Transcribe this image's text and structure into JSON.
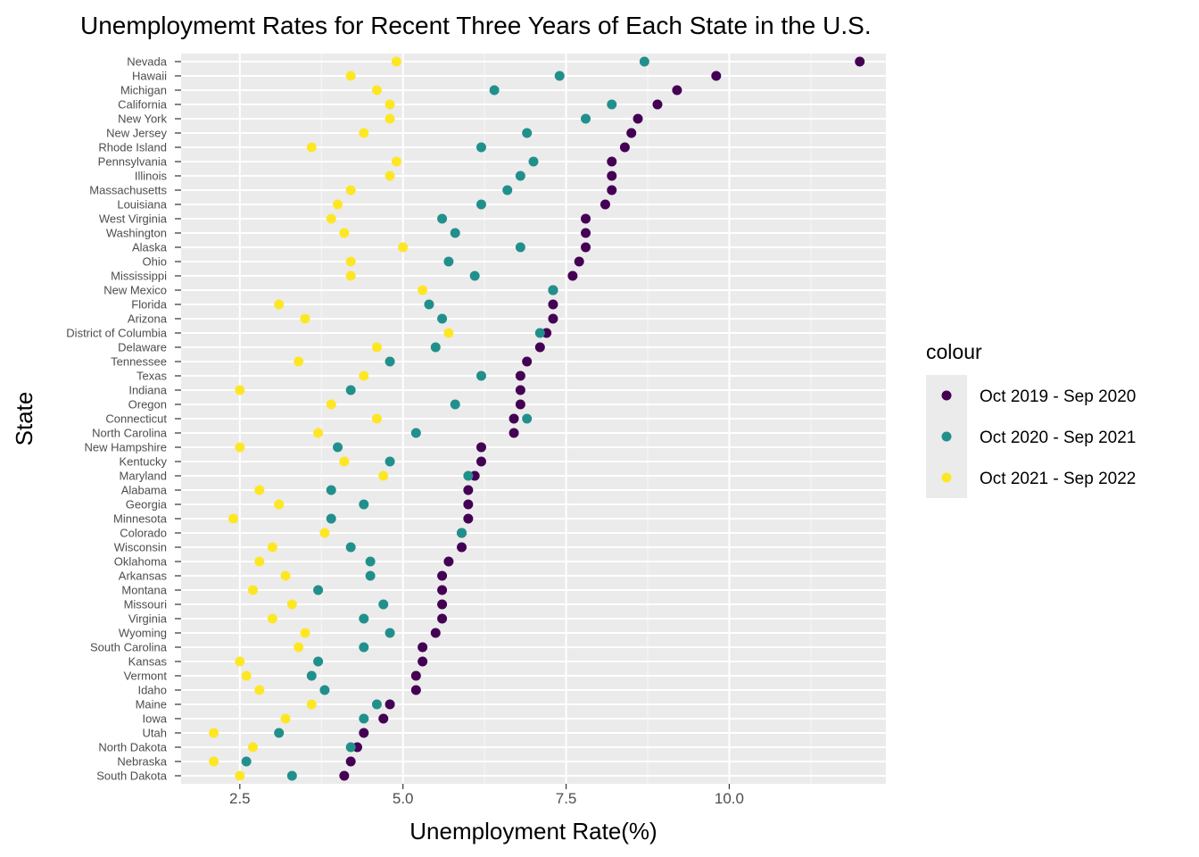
{
  "chart_data": {
    "type": "scatter",
    "title": "Unemploymemt Rates for Recent Three Years of Each State in the U.S.",
    "xlabel": "Unemployment Rate(%)",
    "ylabel": "State",
    "xlim": [
      1.6,
      12.4
    ],
    "x_ticks": [
      2.5,
      5.0,
      7.5,
      10.0
    ],
    "x_tick_labels": [
      "2.5",
      "5.0",
      "7.5",
      "10.0"
    ],
    "grid": true,
    "legend": {
      "title": "colour",
      "position": "right"
    },
    "categories": [
      "Nevada",
      "Hawaii",
      "Michigan",
      "California",
      "New York",
      "New Jersey",
      "Rhode Island",
      "Pennsylvania",
      "Illinois",
      "Massachusetts",
      "Louisiana",
      "West Virginia",
      "Washington",
      "Alaska",
      "Ohio",
      "Mississippi",
      "New Mexico",
      "Florida",
      "Arizona",
      "District of Columbia",
      "Delaware",
      "Tennessee",
      "Texas",
      "Indiana",
      "Oregon",
      "Connecticut",
      "North Carolina",
      "New Hampshire",
      "Kentucky",
      "Maryland",
      "Alabama",
      "Georgia",
      "Minnesota",
      "Colorado",
      "Wisconsin",
      "Oklahoma",
      "Arkansas",
      "Montana",
      "Missouri",
      "Virginia",
      "Wyoming",
      "South Carolina",
      "Kansas",
      "Vermont",
      "Idaho",
      "Maine",
      "Iowa",
      "Utah",
      "North Dakota",
      "Nebraska",
      "South Dakota"
    ],
    "series": [
      {
        "name": "Oct 2019 - Sep 2020",
        "color": "#440154",
        "values": [
          12.0,
          9.8,
          9.2,
          8.9,
          8.6,
          8.5,
          8.4,
          8.2,
          8.2,
          8.2,
          8.1,
          7.8,
          7.8,
          7.8,
          7.7,
          7.6,
          7.3,
          7.3,
          7.3,
          7.2,
          7.1,
          6.9,
          6.8,
          6.8,
          6.8,
          6.7,
          6.7,
          6.2,
          6.2,
          6.1,
          6.0,
          6.0,
          6.0,
          5.9,
          5.9,
          5.7,
          5.6,
          5.6,
          5.6,
          5.6,
          5.5,
          5.3,
          5.3,
          5.2,
          5.2,
          4.8,
          4.7,
          4.4,
          4.3,
          4.2,
          4.1
        ]
      },
      {
        "name": "Oct 2020 - Sep 2021",
        "color": "#21908C",
        "values": [
          8.7,
          7.4,
          6.4,
          8.2,
          7.8,
          6.9,
          6.2,
          7.0,
          6.8,
          6.6,
          6.2,
          5.6,
          5.8,
          6.8,
          5.7,
          6.1,
          7.3,
          5.4,
          5.6,
          7.1,
          5.5,
          4.8,
          6.2,
          4.2,
          5.8,
          6.9,
          5.2,
          4.0,
          4.8,
          6.0,
          3.9,
          4.4,
          3.9,
          5.9,
          4.2,
          4.5,
          4.5,
          3.7,
          4.7,
          4.4,
          4.8,
          4.4,
          3.7,
          3.6,
          3.8,
          4.6,
          4.4,
          3.1,
          4.2,
          2.6,
          3.3
        ]
      },
      {
        "name": "Oct 2021 - Sep 2022",
        "color": "#FDE725",
        "values": [
          4.9,
          4.2,
          4.6,
          4.8,
          4.8,
          4.4,
          3.6,
          4.9,
          4.8,
          4.2,
          4.0,
          3.9,
          4.1,
          5.0,
          4.2,
          4.2,
          5.3,
          3.1,
          3.5,
          5.7,
          4.6,
          3.4,
          4.4,
          2.5,
          3.9,
          4.6,
          3.7,
          2.5,
          4.1,
          4.7,
          2.8,
          3.1,
          2.4,
          3.8,
          3.0,
          2.8,
          3.2,
          2.7,
          3.3,
          3.0,
          3.5,
          3.4,
          2.5,
          2.6,
          2.8,
          3.6,
          3.2,
          2.1,
          2.7,
          2.1,
          2.5
        ]
      }
    ]
  }
}
